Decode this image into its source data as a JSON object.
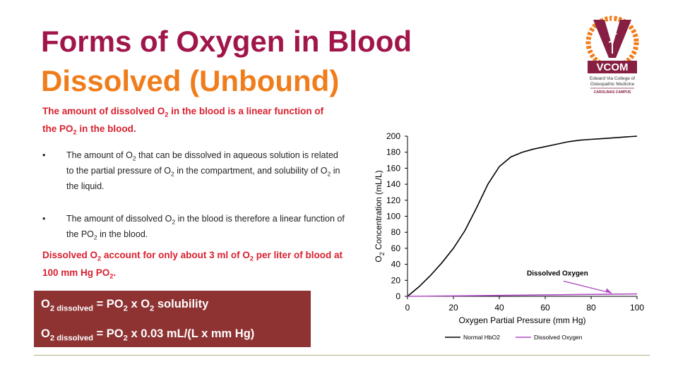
{
  "slide": {
    "title_line1": "Forms of Oxygen in Blood",
    "title_line2": "Dissolved (Unbound)",
    "intro": [
      "The amount of dissolved O",
      "2",
      " in the blood is a linear function of the PO",
      "2",
      " in the blood."
    ],
    "bullets": [
      [
        "The amount of O",
        "2",
        " that can be dissolved in aqueous solution is related to the partial pressure of O",
        "2",
        " in the compartment, and solubility  of O",
        "2",
        " in the liquid."
      ],
      [
        "The amount of dissolved  O",
        "2",
        " in the blood is therefore a linear function of the PO",
        "2",
        " in the blood."
      ]
    ],
    "bullet_marker": "•",
    "note": [
      "Dissolved O",
      "2",
      " account for only about 3 ml of O",
      "2",
      " per liter of blood at 100 mm Hg PO",
      "2",
      "."
    ],
    "equations": [
      [
        "O",
        "2 dissolved",
        " = PO",
        "2",
        " x O",
        "2",
        " solubility"
      ],
      [
        "O",
        "2 dissolved",
        " = PO",
        "2",
        " x 0.03 mL/(L x mm Hg)"
      ]
    ],
    "logo": {
      "text": "VCOM",
      "line1": "Edward Via College of",
      "line2": "Osteopathic Medicine",
      "campus": "CAROLINAS CAMPUS",
      "colors": {
        "maroon": "#861f41",
        "orange": "#f07d1c"
      }
    },
    "colors": {
      "title1": "#a0164a",
      "title2": "#f07d1c",
      "red_text": "#d8202f",
      "box": "#8e3232",
      "rule": "#b6ad86"
    }
  },
  "chart_data": {
    "type": "line",
    "xlabel": "Oxygen Partial Pressure (mm Hg)",
    "ylabel": [
      "O",
      "2",
      " Concentration (mL/L)"
    ],
    "xlim": [
      0,
      100
    ],
    "ylim": [
      0,
      200
    ],
    "xticks": [
      0,
      20,
      40,
      60,
      80,
      100
    ],
    "yticks": [
      0,
      20,
      40,
      60,
      80,
      100,
      120,
      140,
      160,
      180,
      200
    ],
    "grid": false,
    "legend_position": "bottom",
    "annotation": {
      "text": "Dissolved Oxygen",
      "target": [
        89,
        4
      ]
    },
    "series": [
      {
        "name": "Normal HbO2",
        "color": "#000000",
        "x": [
          0,
          5,
          10,
          15,
          20,
          25,
          30,
          35,
          40,
          45,
          50,
          55,
          60,
          65,
          70,
          75,
          80,
          85,
          90,
          95,
          100
        ],
        "y": [
          0,
          12,
          26,
          42,
          60,
          82,
          110,
          140,
          162,
          174,
          180,
          184,
          187,
          190,
          193,
          195,
          196,
          197,
          198,
          199,
          200
        ]
      },
      {
        "name": "Dissolved Oxygen",
        "color": "#b04fc4",
        "x": [
          0,
          100
        ],
        "y": [
          0,
          3
        ]
      }
    ]
  }
}
